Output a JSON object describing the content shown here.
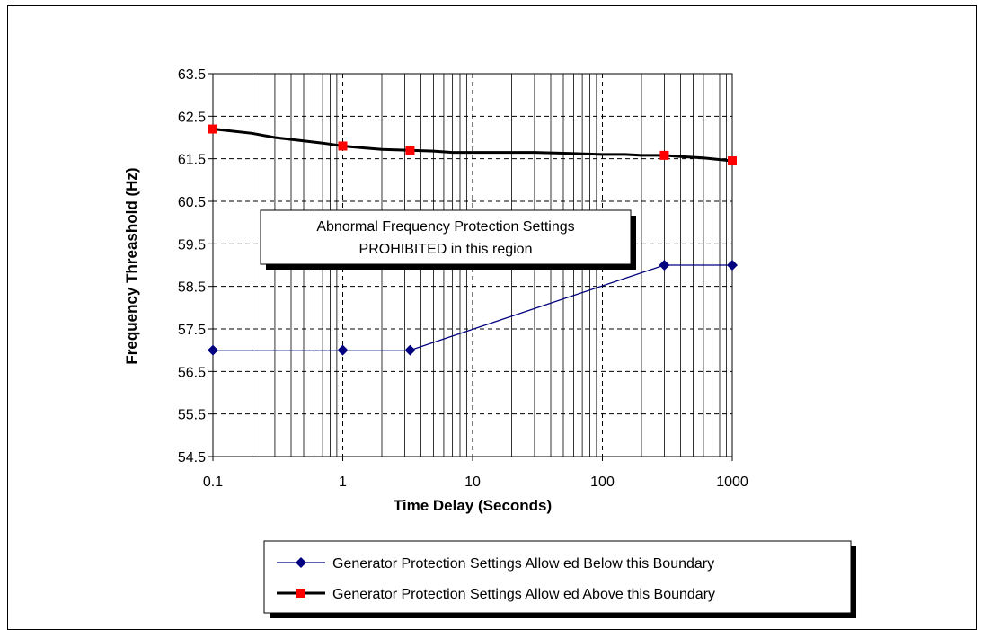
{
  "chart_data": {
    "type": "line",
    "xlabel": "Time Delay (Seconds)",
    "ylabel": "Frequency Threashold (Hz)",
    "xscale": "log",
    "xlim": [
      0.1,
      1000
    ],
    "ylim": [
      54.5,
      63.5
    ],
    "x_ticks": [
      "0.1",
      "1",
      "10",
      "100",
      "1000"
    ],
    "y_ticks": [
      "54.5",
      "55.5",
      "56.5",
      "57.5",
      "58.5",
      "59.5",
      "60.5",
      "61.5",
      "62.5",
      "63.5"
    ],
    "grid": true,
    "legend_position": "bottom",
    "annotation": {
      "line1": "Abnormal Frequency Protection Settings",
      "line2": "PROHIBITED in this region"
    },
    "series": [
      {
        "name": "Generator Protection Settings Allow ed Below this Boundary",
        "color": "#000080",
        "marker": "diamond",
        "marker_color": "#000080",
        "points": [
          [
            0.1,
            57.0
          ],
          [
            1,
            57.0
          ],
          [
            3.3,
            57.0
          ],
          [
            300,
            59.0
          ],
          [
            1000,
            59.0
          ]
        ],
        "markers": [
          [
            0.1,
            57.0
          ],
          [
            1,
            57.0
          ],
          [
            3.3,
            57.0
          ],
          [
            300,
            59.0
          ],
          [
            1000,
            59.0
          ]
        ]
      },
      {
        "name": "Generator Protection Settings Allow ed Above this Boundary",
        "color": "#000000",
        "marker": "square",
        "marker_color": "#ff0000",
        "points": [
          [
            0.1,
            62.2
          ],
          [
            0.2,
            62.1
          ],
          [
            0.3,
            62.0
          ],
          [
            0.5,
            61.92
          ],
          [
            0.7,
            61.87
          ],
          [
            1,
            61.8
          ],
          [
            1.5,
            61.75
          ],
          [
            2,
            61.72
          ],
          [
            3.3,
            61.7
          ],
          [
            5,
            61.68
          ],
          [
            7,
            61.65
          ],
          [
            10,
            61.65
          ],
          [
            20,
            61.65
          ],
          [
            30,
            61.65
          ],
          [
            50,
            61.63
          ],
          [
            100,
            61.6
          ],
          [
            150,
            61.6
          ],
          [
            200,
            61.58
          ],
          [
            300,
            61.58
          ],
          [
            400,
            61.55
          ],
          [
            600,
            61.52
          ],
          [
            1000,
            61.45
          ]
        ],
        "markers": [
          [
            0.1,
            62.2
          ],
          [
            1,
            61.8
          ],
          [
            3.3,
            61.7
          ],
          [
            300,
            61.58
          ],
          [
            1000,
            61.45
          ]
        ]
      }
    ]
  }
}
